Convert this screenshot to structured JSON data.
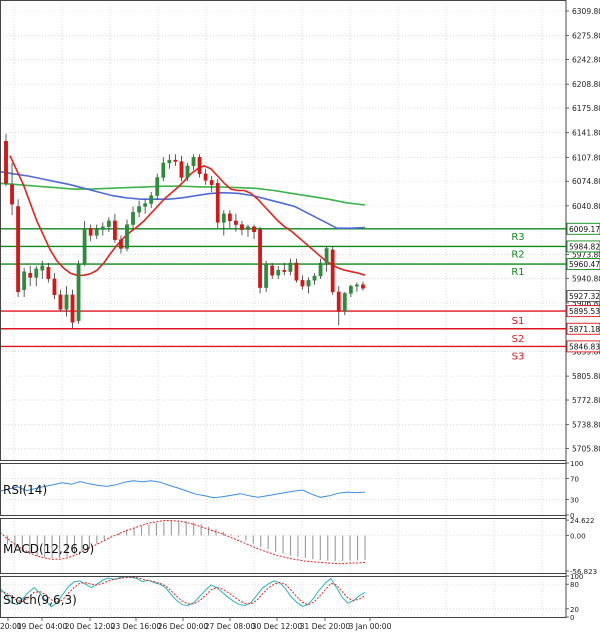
{
  "chart_data": [
    {
      "type": "candlestick",
      "panel": "price",
      "ylim": [
        5690,
        6325
      ],
      "y_ticks": [
        "6309.80",
        "6275.80",
        "6242.80",
        "6208.80",
        "6175.80",
        "6141.80",
        "6107.80",
        "6074.80",
        "6040.80",
        "5973.80",
        "5940.80",
        "5906.80",
        "5839.80",
        "5805.80",
        "5772.80",
        "5738.80",
        "5705.80"
      ],
      "x_ticks": [
        "20:00",
        "19 Dec 04:00",
        "20 Dec 12:00",
        "23 Dec 16:00",
        "26 Dec 00:00",
        "27 Dec 08:00",
        "30 Dec 12:00",
        "31 Dec 20:00",
        "3 Jan 00:00"
      ],
      "candles": [
        {
          "o": 6130,
          "h": 6140,
          "l": 6068,
          "c": 6072
        },
        {
          "o": 6070,
          "h": 6100,
          "l": 6028,
          "c": 6043
        },
        {
          "o": 6040,
          "h": 6050,
          "l": 5915,
          "c": 5922
        },
        {
          "o": 5925,
          "h": 5955,
          "l": 5915,
          "c": 5950
        },
        {
          "o": 5948,
          "h": 5958,
          "l": 5930,
          "c": 5942
        },
        {
          "o": 5942,
          "h": 5958,
          "l": 5930,
          "c": 5954
        },
        {
          "o": 5952,
          "h": 5965,
          "l": 5940,
          "c": 5958
        },
        {
          "o": 5956,
          "h": 5962,
          "l": 5935,
          "c": 5940
        },
        {
          "o": 5940,
          "h": 5948,
          "l": 5912,
          "c": 5918
        },
        {
          "o": 5918,
          "h": 5925,
          "l": 5895,
          "c": 5898
        },
        {
          "o": 5898,
          "h": 5930,
          "l": 5888,
          "c": 5918
        },
        {
          "o": 5918,
          "h": 5925,
          "l": 5872,
          "c": 5880
        },
        {
          "o": 5882,
          "h": 5965,
          "l": 5878,
          "c": 5960
        },
        {
          "o": 5960,
          "h": 6020,
          "l": 5958,
          "c": 6010
        },
        {
          "o": 6010,
          "h": 6015,
          "l": 5992,
          "c": 6000
        },
        {
          "o": 6000,
          "h": 6015,
          "l": 5995,
          "c": 6008
        },
        {
          "o": 6008,
          "h": 6018,
          "l": 6000,
          "c": 6012
        },
        {
          "o": 6012,
          "h": 6025,
          "l": 6005,
          "c": 6020
        },
        {
          "o": 6020,
          "h": 6030,
          "l": 5990,
          "c": 5994
        },
        {
          "o": 5994,
          "h": 6000,
          "l": 5975,
          "c": 5982
        },
        {
          "o": 5982,
          "h": 6022,
          "l": 5978,
          "c": 6015
        },
        {
          "o": 6015,
          "h": 6040,
          "l": 6010,
          "c": 6032
        },
        {
          "o": 6032,
          "h": 6048,
          "l": 6025,
          "c": 6040
        },
        {
          "o": 6040,
          "h": 6050,
          "l": 6030,
          "c": 6044
        },
        {
          "o": 6044,
          "h": 6060,
          "l": 6038,
          "c": 6055
        },
        {
          "o": 6055,
          "h": 6085,
          "l": 6050,
          "c": 6080
        },
        {
          "o": 6080,
          "h": 6108,
          "l": 6075,
          "c": 6100
        },
        {
          "o": 6100,
          "h": 6112,
          "l": 6092,
          "c": 6104
        },
        {
          "o": 6104,
          "h": 6112,
          "l": 6096,
          "c": 6102
        },
        {
          "o": 6102,
          "h": 6110,
          "l": 6075,
          "c": 6080
        },
        {
          "o": 6080,
          "h": 6100,
          "l": 6075,
          "c": 6096
        },
        {
          "o": 6096,
          "h": 6112,
          "l": 6090,
          "c": 6108
        },
        {
          "o": 6108,
          "h": 6112,
          "l": 6080,
          "c": 6085
        },
        {
          "o": 6085,
          "h": 6092,
          "l": 6070,
          "c": 6076
        },
        {
          "o": 6076,
          "h": 6082,
          "l": 6060,
          "c": 6070
        },
        {
          "o": 6072,
          "h": 6078,
          "l": 6010,
          "c": 6018
        },
        {
          "o": 6018,
          "h": 6035,
          "l": 6000,
          "c": 6030
        },
        {
          "o": 6030,
          "h": 6035,
          "l": 6010,
          "c": 6020
        },
        {
          "o": 6020,
          "h": 6030,
          "l": 6005,
          "c": 6015
        },
        {
          "o": 6015,
          "h": 6020,
          "l": 6000,
          "c": 6008
        },
        {
          "o": 6008,
          "h": 6015,
          "l": 5998,
          "c": 6012
        },
        {
          "o": 6012,
          "h": 6015,
          "l": 5995,
          "c": 6005
        },
        {
          "o": 6008,
          "h": 6012,
          "l": 5920,
          "c": 5928
        },
        {
          "o": 5928,
          "h": 5965,
          "l": 5922,
          "c": 5960
        },
        {
          "o": 5958,
          "h": 5962,
          "l": 5940,
          "c": 5945
        },
        {
          "o": 5945,
          "h": 5958,
          "l": 5940,
          "c": 5952
        },
        {
          "o": 5952,
          "h": 5962,
          "l": 5945,
          "c": 5950
        },
        {
          "o": 5950,
          "h": 5968,
          "l": 5945,
          "c": 5962
        },
        {
          "o": 5962,
          "h": 5968,
          "l": 5935,
          "c": 5938
        },
        {
          "o": 5938,
          "h": 5945,
          "l": 5925,
          "c": 5930
        },
        {
          "o": 5930,
          "h": 5942,
          "l": 5920,
          "c": 5938
        },
        {
          "o": 5938,
          "h": 5948,
          "l": 5932,
          "c": 5944
        },
        {
          "o": 5944,
          "h": 5968,
          "l": 5940,
          "c": 5962
        },
        {
          "o": 5962,
          "h": 5985,
          "l": 5950,
          "c": 5982
        },
        {
          "o": 5980,
          "h": 5985,
          "l": 5918,
          "c": 5922
        },
        {
          "o": 5922,
          "h": 5930,
          "l": 5876,
          "c": 5895
        },
        {
          "o": 5895,
          "h": 5922,
          "l": 5890,
          "c": 5920
        },
        {
          "o": 5920,
          "h": 5932,
          "l": 5915,
          "c": 5930
        },
        {
          "o": 5930,
          "h": 5935,
          "l": 5922,
          "c": 5932
        },
        {
          "o": 5932,
          "h": 5936,
          "l": 5924,
          "c": 5927
        }
      ],
      "ma_fast": [
        6110,
        6090,
        6070,
        6045,
        6020,
        6000,
        5980,
        5965,
        5955,
        5948,
        5945,
        5945,
        5947,
        5952,
        5962,
        5975,
        5987,
        5997,
        6005,
        6012,
        6020,
        6030,
        6040,
        6050,
        6058,
        6066,
        6075,
        6085,
        6092,
        6096,
        6092,
        6082,
        6072,
        6064,
        6062,
        6062,
        6058,
        6050,
        6040,
        6030,
        6020,
        6012,
        6006,
        5998,
        5990,
        5982,
        5974,
        5966,
        5960,
        5955,
        5952,
        5950,
        5948,
        5945
      ],
      "ma_fast_color": "#e0231d",
      "ma_mid": [
        6088,
        6085,
        6082,
        6078,
        6074,
        6070,
        6065,
        6060,
        6055,
        6052,
        6050,
        6050,
        6050,
        6052,
        6055,
        6058,
        6059,
        6058,
        6055,
        6050,
        6045,
        6040,
        6030,
        6020,
        6010,
        6010,
        6011
      ],
      "ma_mid_color": "#4e6bd8",
      "ma_slow": [
        6072,
        6070,
        6068,
        6066,
        6064,
        6064,
        6065,
        6066,
        6067,
        6068,
        6068,
        6067,
        6067,
        6066,
        6065,
        6062,
        6058,
        6054,
        6050,
        6045,
        6042
      ],
      "ma_slow_color": "#3cb44b",
      "price_labels": {
        "current": "5927.32",
        "r3_price": "6009.17",
        "r2_price": "5984.82",
        "r1_price": "5960.47",
        "s1_price": "5895.53",
        "s2_price": "5871.18",
        "s3_price": "5846.83"
      },
      "levels": {
        "r3": 6009.17,
        "r2": 5984.82,
        "r1": 5960.47,
        "s1": 5895.53,
        "s2": 5871.18,
        "s3": 5846.83
      },
      "level_labels": {
        "r3": "R3",
        "r2": "R2",
        "r1": "R1",
        "s1": "S1",
        "s2": "S2",
        "s3": "S3"
      },
      "resistance_color": "#0a8a1a",
      "support_color": "#e0141c",
      "bull_color": "#2e8b3c",
      "bear_color": "#d41616"
    },
    {
      "type": "line",
      "panel": "rsi",
      "label": "RSI(14)",
      "ylim": [
        0,
        100
      ],
      "y_ticks": [
        "100",
        "70",
        "30",
        "0"
      ],
      "values": [
        46,
        50,
        54,
        47,
        51,
        55,
        58,
        62,
        59,
        64,
        60,
        57,
        55,
        58,
        63,
        66,
        64,
        66,
        63,
        57,
        52,
        46,
        40,
        37,
        33,
        35,
        38,
        41,
        37,
        34,
        37,
        40,
        43,
        46,
        48,
        40,
        34,
        37,
        42,
        44,
        43,
        44
      ],
      "color": "#3a8ee6"
    },
    {
      "type": "bar-line",
      "panel": "macd",
      "label": "MACD(12,26,9)",
      "ylim": [
        -60,
        28
      ],
      "y_ticks": [
        "24.622",
        "0.00",
        "-56.823"
      ],
      "histogram": [
        -8,
        -14,
        -20,
        -26,
        -30,
        -33,
        -35,
        -36,
        -36,
        -34,
        -30,
        -25,
        -19,
        -13,
        -7,
        -1,
        4,
        8,
        12,
        15,
        18,
        20,
        22,
        23,
        24,
        23,
        21,
        18,
        14,
        10,
        6,
        2,
        -3,
        -8,
        -13,
        -18,
        -22,
        -26,
        -29,
        -32,
        -34,
        -36,
        -38,
        -39,
        -40,
        -41,
        -41,
        -40,
        -40,
        -39
      ],
      "signal": [
        5,
        -5,
        -14,
        -22,
        -28,
        -33,
        -36,
        -38,
        -38,
        -36,
        -32,
        -26,
        -20,
        -14,
        -8,
        -2,
        3,
        8,
        12,
        16,
        20,
        22,
        24,
        24,
        23,
        21,
        18,
        14,
        10,
        6,
        2,
        -3,
        -8,
        -13,
        -18,
        -23,
        -27,
        -31,
        -34,
        -37,
        -39,
        -41,
        -42,
        -43,
        -44,
        -45,
        -45,
        -44,
        -44,
        -43
      ],
      "hist_color": "#9a9a9a",
      "signal_color": "#e0231d"
    },
    {
      "type": "line",
      "panel": "stoch",
      "label": "Stoch(9,6,3)",
      "ylim": [
        0,
        100
      ],
      "y_ticks": [
        "100",
        "80",
        "20",
        "0"
      ],
      "k_values": [
        70,
        55,
        35,
        30,
        45,
        60,
        72,
        58,
        40,
        25,
        35,
        55,
        74,
        86,
        88,
        80,
        72,
        80,
        90,
        95,
        92,
        96,
        98,
        97,
        94,
        86,
        90,
        84,
        80,
        72,
        55,
        40,
        30,
        28,
        35,
        50,
        65,
        78,
        72,
        60,
        48,
        38,
        30,
        28,
        35,
        52,
        70,
        80,
        88,
        84,
        70,
        50,
        36,
        26,
        30,
        46,
        66,
        82,
        94,
        72,
        48,
        34,
        40,
        52,
        60
      ],
      "d_values": [
        62,
        60,
        50,
        40,
        38,
        48,
        60,
        62,
        55,
        42,
        36,
        42,
        58,
        72,
        82,
        84,
        80,
        78,
        82,
        88,
        92,
        94,
        96,
        97,
        96,
        92,
        89,
        86,
        82,
        76,
        64,
        50,
        38,
        32,
        32,
        40,
        52,
        66,
        72,
        68,
        60,
        50,
        40,
        33,
        32,
        40,
        56,
        70,
        80,
        84,
        80,
        66,
        50,
        36,
        30,
        36,
        50,
        66,
        82,
        78,
        62,
        46,
        40,
        44,
        52
      ],
      "k_color": "#27b5c4",
      "d_color": "#e0231d"
    }
  ]
}
